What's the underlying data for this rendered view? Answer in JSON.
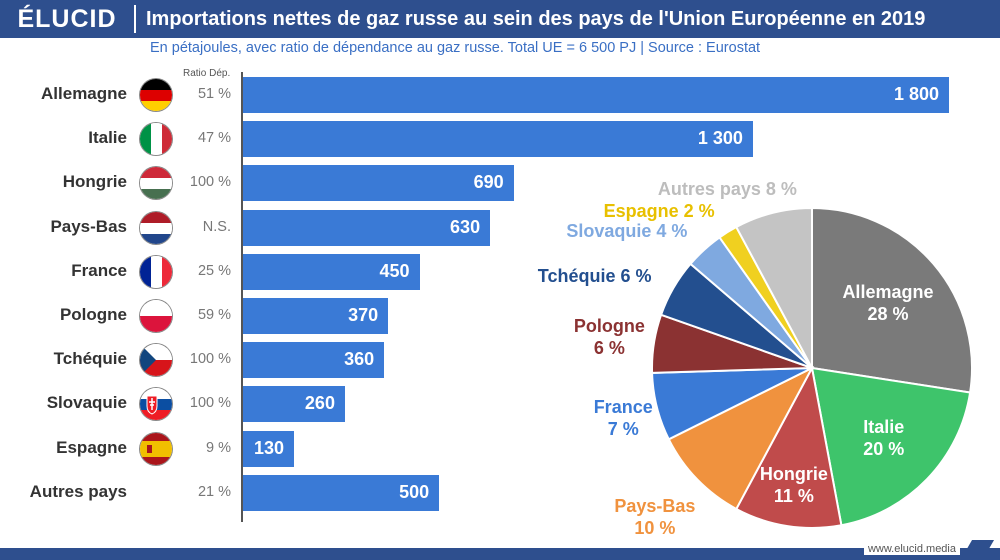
{
  "header": {
    "logo": "ÉLUCID",
    "title": "Importations nettes de gaz russe au sein des pays de l'Union Européenne en 2019",
    "subtitle": "En pétajoules, avec ratio de dépendance au gaz russe. Total UE = 6 500 PJ  |  Source : Eurostat",
    "ratio_header": "Ratio Dép."
  },
  "footer": {
    "url": "www.elucid.media"
  },
  "colors": {
    "bar": "#3a7ad6",
    "header": "#2e4f8e"
  },
  "chart_data": [
    {
      "type": "bar",
      "orientation": "horizontal",
      "categories": [
        "Allemagne",
        "Italie",
        "Hongrie",
        "Pays-Bas",
        "France",
        "Pologne",
        "Tchéquie",
        "Slovaquie",
        "Espagne",
        "Autres pays"
      ],
      "values": [
        1800,
        1300,
        690,
        630,
        450,
        370,
        360,
        260,
        130,
        500
      ],
      "value_labels": [
        "1 800",
        "1 300",
        "690",
        "630",
        "450",
        "370",
        "360",
        "260",
        "130",
        "500"
      ],
      "ratios": [
        "51 %",
        "47 %",
        "100 %",
        "N.S.",
        "25 %",
        "59 %",
        "100 %",
        "100 %",
        "9 %",
        "21 %"
      ],
      "flags": [
        "germany-flag",
        "italy-flag",
        "hungary-flag",
        "netherlands-flag",
        "france-flag",
        "poland-flag",
        "czechia-flag",
        "slovakia-flag",
        "spain-flag",
        ""
      ],
      "xlim": [
        0,
        1850
      ]
    },
    {
      "type": "pie",
      "start": "top, clockwise",
      "slices": [
        {
          "label": "Allemagne",
          "pct_label": "28 %",
          "value": 28,
          "color": "#7a7a7a",
          "text_color": "#ffffff"
        },
        {
          "label": "Italie",
          "pct_label": "20 %",
          "value": 20,
          "color": "#3ec46b",
          "text_color": "#ffffff"
        },
        {
          "label": "Hongrie",
          "pct_label": "11 %",
          "value": 11,
          "color": "#c04b4b",
          "text_color": "#ffffff"
        },
        {
          "label": "Pays-Bas",
          "pct_label": "10 %",
          "value": 10,
          "color": "#f0923e",
          "text_color": "#f0923e"
        },
        {
          "label": "France",
          "pct_label": "7 %",
          "value": 7,
          "color": "#3a7ad6",
          "text_color": "#3a7ad6"
        },
        {
          "label": "Pologne",
          "pct_label": "6 %",
          "value": 6,
          "color": "#8b3232",
          "text_color": "#8b3232"
        },
        {
          "label": "Tchéquie",
          "pct_label": "6 %",
          "value": 6,
          "color": "#234f8f",
          "text_color": "#234f8f"
        },
        {
          "label": "Slovaquie",
          "pct_label": "4 %",
          "value": 4,
          "color": "#7fa9e0",
          "text_color": "#7fa9e0"
        },
        {
          "label": "Espagne",
          "pct_label": "2 %",
          "value": 2,
          "color": "#f0d020",
          "text_color": "#e8c000"
        },
        {
          "label": "Autres pays",
          "pct_label": "8 %",
          "value": 8,
          "color": "#c4c4c4",
          "text_color": "#bdbdbd"
        }
      ]
    }
  ]
}
